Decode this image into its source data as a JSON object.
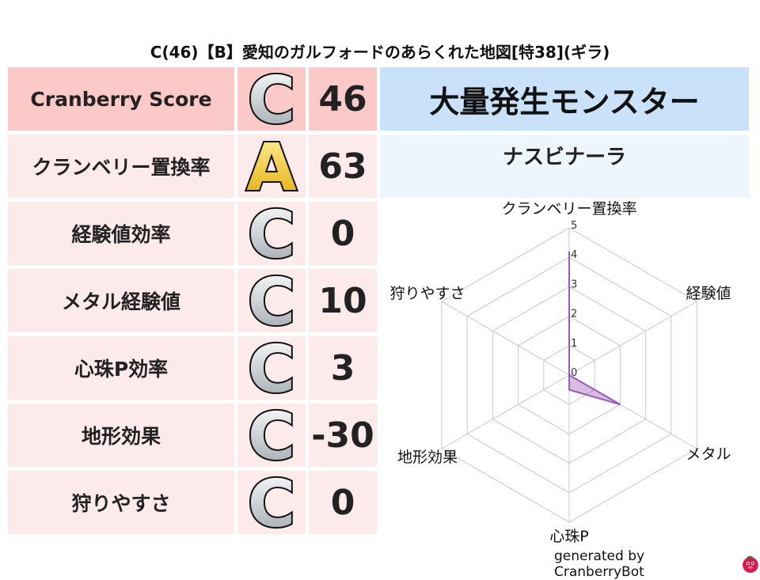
{
  "title": "C(46)【B】愛知のガルフォードのあらくれた地図[特38](ギラ)",
  "rows": [
    {
      "label": "Cranberry Score",
      "grade": "C",
      "value": "46"
    },
    {
      "label": "クランベリー置換率",
      "grade": "A",
      "value": "63"
    },
    {
      "label": "経験値効率",
      "grade": "C",
      "value": "0"
    },
    {
      "label": "メタル経験値",
      "grade": "C",
      "value": "10"
    },
    {
      "label": "心珠P効率",
      "grade": "C",
      "value": "3"
    },
    {
      "label": "地形効果",
      "grade": "C",
      "value": "-30"
    },
    {
      "label": "狩りやすさ",
      "grade": "C",
      "value": "0"
    }
  ],
  "monster_header": "大量発生モンスター",
  "monster_name": "ナスビナーラ",
  "colors": {
    "score_row": "#fcc9c9",
    "row": "#fdeaea",
    "header": "#c9e2fa",
    "subheader": "#eef6fd",
    "radar": "#9b59b6",
    "grade_C": "#c8ced4",
    "grade_A": "#f0c419"
  },
  "chart_data": {
    "type": "radar",
    "axes": [
      "クランベリー置換率",
      "経験値",
      "メタル",
      "心珠P",
      "地形効果",
      "狩りやすさ"
    ],
    "values": [
      4.2,
      0,
      2,
      0.5,
      0,
      0
    ],
    "range": [
      0,
      5
    ],
    "ticks": [
      "0",
      "1",
      "2",
      "3",
      "4",
      "5"
    ]
  },
  "footer": {
    "text": "generated by CranberryBot",
    "icon": "cranberry-mascot-icon"
  }
}
